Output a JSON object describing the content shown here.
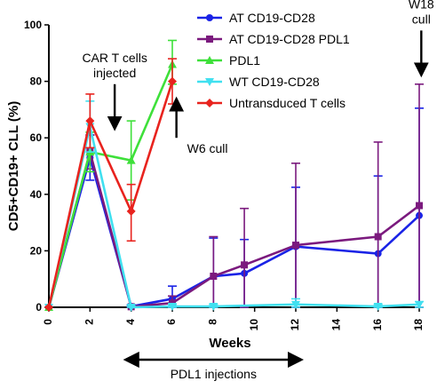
{
  "chart_data": {
    "type": "line",
    "xlabel": "Weeks",
    "ylabel": "CD5+CD19+ CLL (%)",
    "xlim": [
      0,
      18
    ],
    "ylim": [
      0,
      100
    ],
    "x_ticks": [
      "0",
      "2",
      "4",
      "6",
      "8",
      "10",
      "12",
      "14",
      "16",
      "18"
    ],
    "y_ticks": [
      "0",
      "20",
      "40",
      "60",
      "80",
      "100"
    ],
    "grid": false,
    "legend_position": "top-right",
    "error_bars": true,
    "series": [
      {
        "name": "AT CD19-CD28",
        "color": "#1a23e6",
        "marker": "circle",
        "points": [
          {
            "x": 0,
            "y": 0,
            "lo": 0,
            "hi": 0
          },
          {
            "x": 2,
            "y": 53,
            "lo": 45,
            "hi": 61
          },
          {
            "x": 4,
            "y": 0.3,
            "lo": 0,
            "hi": 0.8
          },
          {
            "x": 6,
            "y": 3,
            "lo": 0,
            "hi": 7.5
          },
          {
            "x": 8,
            "y": 11,
            "lo": 0,
            "hi": 24.5
          },
          {
            "x": 9.5,
            "y": 12,
            "lo": 0,
            "hi": 24
          },
          {
            "x": 12,
            "y": 21.5,
            "lo": 0,
            "hi": 42.5
          },
          {
            "x": 16,
            "y": 19,
            "lo": 0,
            "hi": 46.5
          },
          {
            "x": 18,
            "y": 32.5,
            "lo": 0,
            "hi": 70.5
          }
        ]
      },
      {
        "name": "AT CD19-CD28 PDL1",
        "color": "#7b1a7e",
        "marker": "square",
        "points": [
          {
            "x": 0,
            "y": 0,
            "lo": 0,
            "hi": 0
          },
          {
            "x": 2,
            "y": 55,
            "lo": 49,
            "hi": 61
          },
          {
            "x": 4,
            "y": 0.2,
            "lo": 0,
            "hi": 0.6
          },
          {
            "x": 6,
            "y": 1.5,
            "lo": 0,
            "hi": 4
          },
          {
            "x": 8,
            "y": 11,
            "lo": 0,
            "hi": 25
          },
          {
            "x": 9.5,
            "y": 15,
            "lo": 0,
            "hi": 35
          },
          {
            "x": 12,
            "y": 22,
            "lo": 0,
            "hi": 51
          },
          {
            "x": 16,
            "y": 25,
            "lo": 0,
            "hi": 58.5
          },
          {
            "x": 18,
            "y": 36,
            "lo": 0,
            "hi": 79
          }
        ]
      },
      {
        "name": "PDL1",
        "color": "#3ee03a",
        "marker": "triangle",
        "points": [
          {
            "x": 0,
            "y": 0,
            "lo": 0,
            "hi": 0
          },
          {
            "x": 2,
            "y": 55,
            "lo": 48,
            "hi": 62
          },
          {
            "x": 4,
            "y": 52,
            "lo": 38,
            "hi": 66
          },
          {
            "x": 6,
            "y": 86,
            "lo": 79,
            "hi": 94.5
          }
        ]
      },
      {
        "name": "WT CD19-CD28",
        "color": "#40e0f0",
        "marker": "triangle-down",
        "points": [
          {
            "x": 0,
            "y": 0,
            "lo": 0,
            "hi": 0
          },
          {
            "x": 2,
            "y": 64,
            "lo": 55,
            "hi": 73
          },
          {
            "x": 4,
            "y": 0,
            "lo": 0,
            "hi": 0.5
          },
          {
            "x": 6,
            "y": 0.3,
            "lo": 0,
            "hi": 1
          },
          {
            "x": 8,
            "y": 0.3,
            "lo": 0,
            "hi": 1
          },
          {
            "x": 12,
            "y": 1,
            "lo": 0,
            "hi": 3
          },
          {
            "x": 16,
            "y": 0.3,
            "lo": 0,
            "hi": 1
          },
          {
            "x": 18,
            "y": 1,
            "lo": 0,
            "hi": 2
          }
        ]
      },
      {
        "name": "Untransduced T cells",
        "color": "#e8231e",
        "marker": "diamond",
        "points": [
          {
            "x": 0,
            "y": 0,
            "lo": 0,
            "hi": 0
          },
          {
            "x": 2,
            "y": 66,
            "lo": 56.5,
            "hi": 75.5
          },
          {
            "x": 4,
            "y": 34,
            "lo": 23.5,
            "hi": 43.5
          },
          {
            "x": 6,
            "y": 80,
            "lo": 72,
            "hi": 88
          }
        ]
      }
    ],
    "annotations": [
      {
        "id": "car",
        "lines": [
          "CAR T cells",
          "injected"
        ],
        "x": 3.2,
        "arrow_y": [
          79,
          65
        ]
      },
      {
        "id": "w6",
        "lines": [
          "W6 cull"
        ],
        "x": 6.2,
        "arrow_y": [
          60,
          72
        ]
      },
      {
        "id": "w18",
        "lines": [
          "W18",
          "cull"
        ],
        "x": 18.1,
        "arrow_y": [
          98,
          84
        ]
      }
    ],
    "bottom_annotation": {
      "text": "PDL1 injections",
      "x_range": [
        4,
        12
      ]
    }
  }
}
